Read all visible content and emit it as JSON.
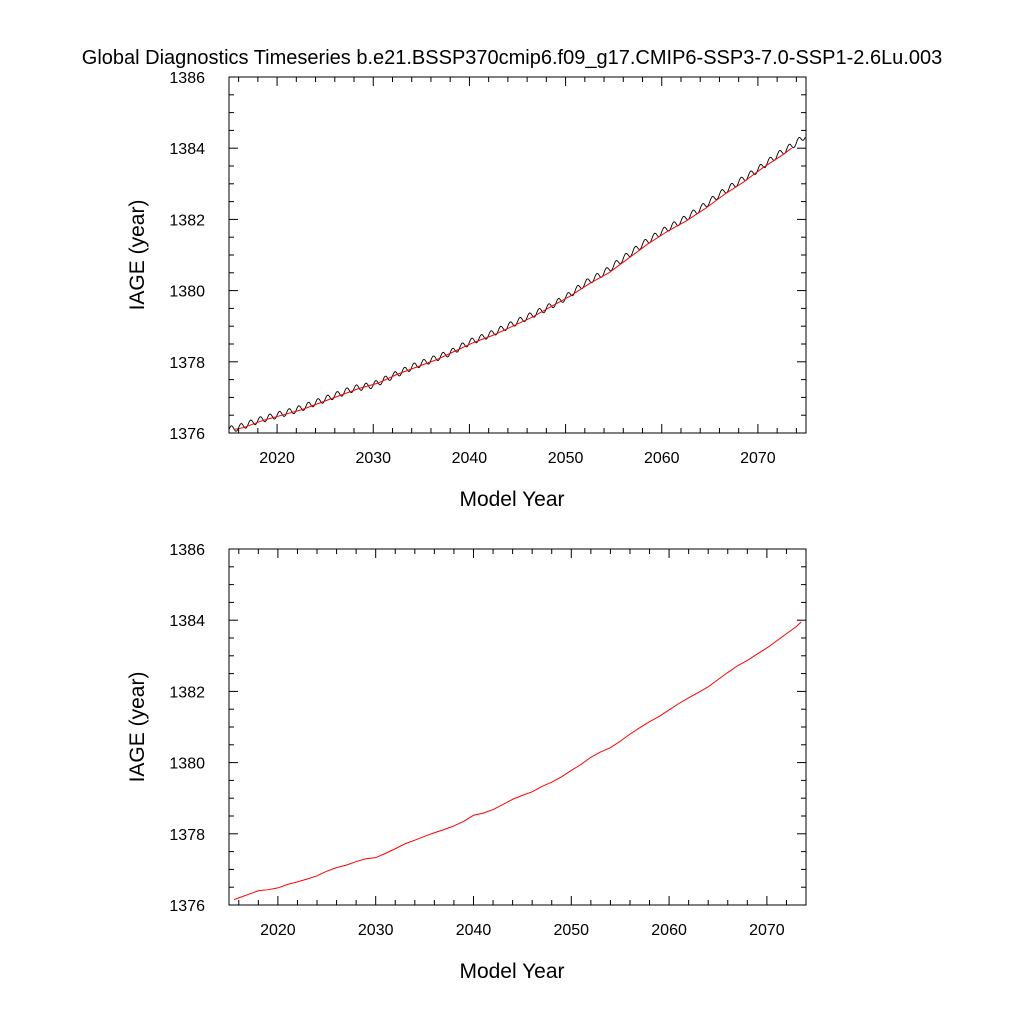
{
  "title": "Global Diagnostics Timeseries b.e21.BSSP370cmip6.f09_g17.CMIP6-SSP3-7.0-SSP1-2.6Lu.003",
  "colors": {
    "monthly": "#000000",
    "annual": "#ff0000",
    "axis": "#000000"
  },
  "chart_data": [
    {
      "type": "line",
      "xlabel": "Model Year",
      "ylabel": "IAGE (year)",
      "xlim": [
        2015,
        2075
      ],
      "ylim": [
        1376,
        1386
      ],
      "xticks": [
        2020,
        2030,
        2040,
        2050,
        2060,
        2070
      ],
      "yticks": [
        1376,
        1378,
        1380,
        1382,
        1384,
        1386
      ],
      "grid": false,
      "series": [
        {
          "color": "#000000",
          "style": "monthly-seasonal",
          "seasonal_amplitude": 0.09,
          "x": [
            2015,
            2016,
            2018,
            2020,
            2022,
            2024,
            2026,
            2028,
            2030,
            2032,
            2034,
            2036,
            2038,
            2040,
            2042,
            2044,
            2046,
            2048,
            2050,
            2052,
            2054,
            2056,
            2058,
            2060,
            2062,
            2064,
            2066,
            2068,
            2070,
            2072,
            2074,
            2074.9
          ],
          "values": [
            1376.1,
            1376.15,
            1376.35,
            1376.5,
            1376.65,
            1376.85,
            1377.05,
            1377.25,
            1377.35,
            1377.6,
            1377.85,
            1378.05,
            1378.25,
            1378.55,
            1378.75,
            1379.0,
            1379.25,
            1379.5,
            1379.8,
            1380.2,
            1380.5,
            1380.9,
            1381.3,
            1381.65,
            1381.95,
            1382.3,
            1382.7,
            1383.05,
            1383.4,
            1383.8,
            1384.15,
            1384.35
          ]
        },
        {
          "color": "#ff0000",
          "style": "annual",
          "x": [
            2015.5,
            2016.5,
            2018.5,
            2020.5,
            2022.5,
            2024.5,
            2026.5,
            2028.5,
            2030.5,
            2032.5,
            2034.5,
            2036.5,
            2038.5,
            2040.5,
            2042.5,
            2044.5,
            2046.5,
            2048.5,
            2050.5,
            2052.5,
            2054.5,
            2056.5,
            2058.5,
            2060.5,
            2062.5,
            2064.5,
            2066.5,
            2068.5,
            2070.5,
            2072.5,
            2073.5
          ],
          "values": [
            1376.1,
            1376.15,
            1376.35,
            1376.5,
            1376.65,
            1376.85,
            1377.05,
            1377.25,
            1377.4,
            1377.65,
            1377.85,
            1378.05,
            1378.3,
            1378.55,
            1378.75,
            1379.0,
            1379.25,
            1379.55,
            1379.85,
            1380.2,
            1380.5,
            1380.9,
            1381.3,
            1381.65,
            1381.95,
            1382.3,
            1382.7,
            1383.05,
            1383.45,
            1383.8,
            1384.0
          ]
        }
      ]
    },
    {
      "type": "line",
      "xlabel": "Model Year",
      "ylabel": "IAGE (year)",
      "xlim": [
        2015,
        2074
      ],
      "ylim": [
        1376,
        1386
      ],
      "xticks": [
        2020,
        2030,
        2040,
        2050,
        2060,
        2070
      ],
      "yticks": [
        1376,
        1378,
        1380,
        1382,
        1384,
        1386
      ],
      "grid": false,
      "series": [
        {
          "color": "#ff0000",
          "style": "annual",
          "x": [
            2015.5,
            2016,
            2017,
            2018,
            2019,
            2020,
            2021,
            2022,
            2023,
            2024,
            2025,
            2026,
            2027,
            2028,
            2029,
            2030,
            2031,
            2032,
            2033,
            2034,
            2035,
            2036,
            2037,
            2038,
            2039,
            2040,
            2041,
            2042,
            2043,
            2044,
            2045,
            2046,
            2047,
            2048,
            2049,
            2050,
            2051,
            2052,
            2053,
            2054,
            2055,
            2056,
            2057,
            2058,
            2059,
            2060,
            2061,
            2062,
            2063,
            2064,
            2065,
            2066,
            2067,
            2068,
            2069,
            2070,
            2071,
            2072,
            2073,
            2073.5
          ],
          "values": [
            1376.15,
            1376.2,
            1376.3,
            1376.4,
            1376.43,
            1376.48,
            1376.58,
            1376.65,
            1376.73,
            1376.82,
            1376.95,
            1377.05,
            1377.12,
            1377.22,
            1377.3,
            1377.33,
            1377.45,
            1377.58,
            1377.72,
            1377.82,
            1377.93,
            1378.03,
            1378.12,
            1378.22,
            1378.35,
            1378.52,
            1378.58,
            1378.68,
            1378.82,
            1378.97,
            1379.08,
            1379.18,
            1379.33,
            1379.45,
            1379.6,
            1379.78,
            1379.95,
            1380.15,
            1380.3,
            1380.42,
            1380.6,
            1380.8,
            1380.98,
            1381.15,
            1381.3,
            1381.48,
            1381.66,
            1381.82,
            1381.97,
            1382.13,
            1382.33,
            1382.53,
            1382.72,
            1382.87,
            1383.05,
            1383.22,
            1383.42,
            1383.62,
            1383.82,
            1383.95
          ]
        }
      ]
    }
  ]
}
